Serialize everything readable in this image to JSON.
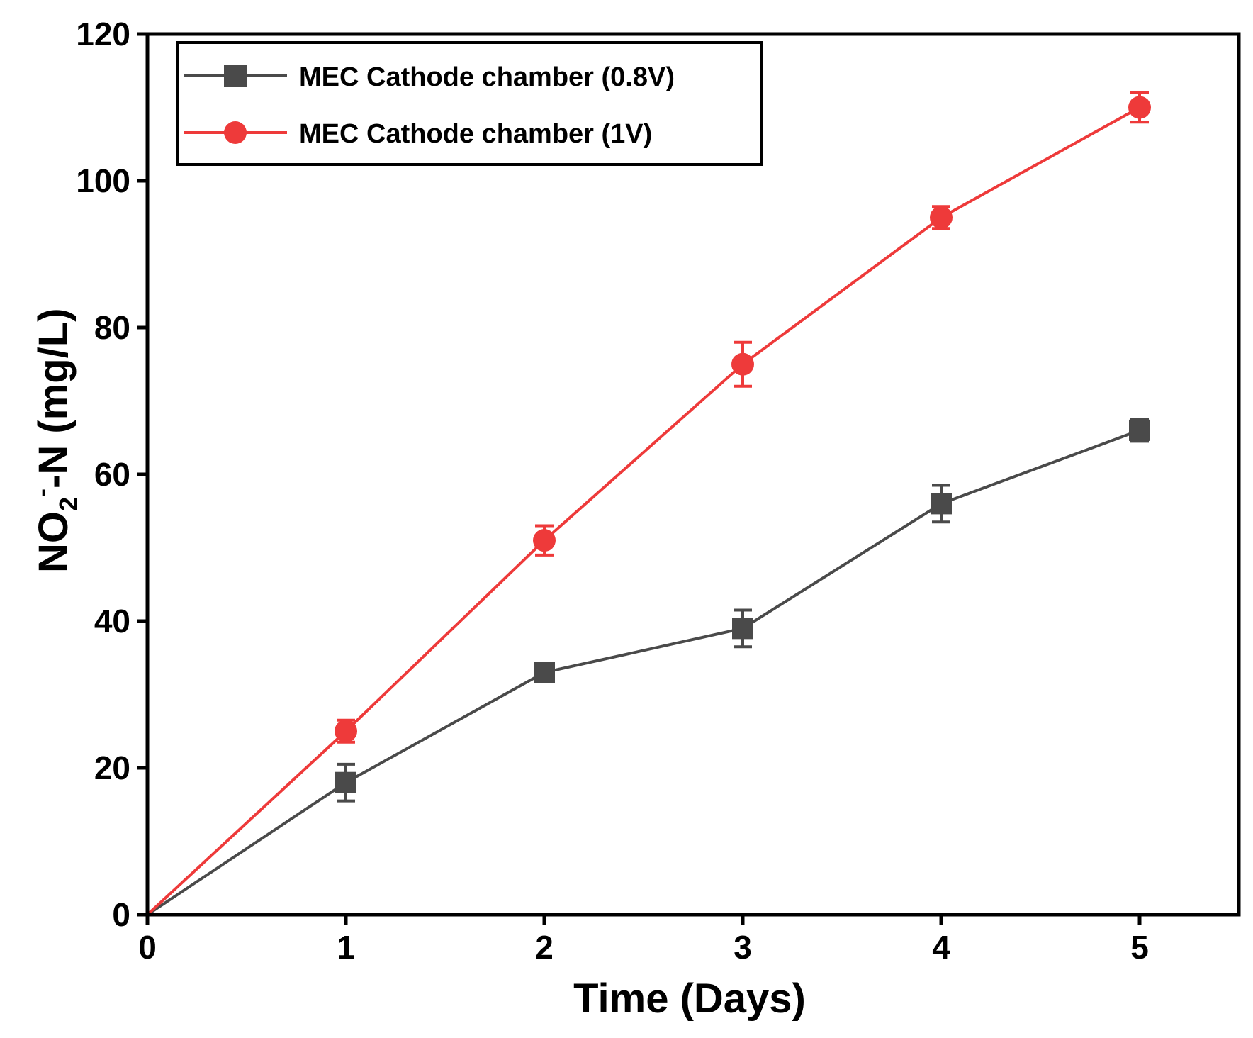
{
  "chart_data": {
    "type": "line",
    "title": "",
    "xlabel": "Time (Days)",
    "ylabel": {
      "main": "NO",
      "sub": "2",
      "sup": "-",
      "rest": "-N (mg/L)"
    },
    "xlim": [
      0,
      5.5
    ],
    "ylim": [
      0,
      120
    ],
    "xticks": [
      0,
      1,
      2,
      3,
      4,
      5
    ],
    "yticks": [
      0,
      20,
      40,
      60,
      80,
      100,
      120
    ],
    "grid": false,
    "legend_position": "top-left",
    "series": [
      {
        "name": "MEC Cathode chamber (0.8V)",
        "color": "#4a4a4a",
        "marker": "square",
        "x": [
          0,
          1,
          2,
          3,
          4,
          5
        ],
        "y": [
          0,
          18,
          33,
          39,
          56,
          66
        ],
        "error": [
          0,
          2.5,
          1.0,
          2.5,
          2.5,
          1.5
        ]
      },
      {
        "name": "MEC Cathode chamber (1V)",
        "color": "#ee3a3a",
        "marker": "circle",
        "x": [
          0,
          1,
          2,
          3,
          4,
          5
        ],
        "y": [
          0,
          25,
          51,
          75,
          95,
          110
        ],
        "error": [
          0,
          1.5,
          2.0,
          3.0,
          1.5,
          2.0
        ]
      }
    ]
  }
}
